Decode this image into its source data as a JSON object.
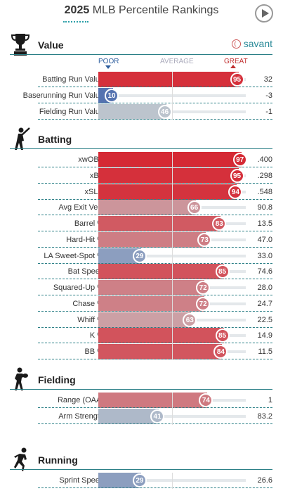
{
  "header": {
    "title_year": "2025",
    "title_rest": "MLB Percentile Rankings"
  },
  "brand": {
    "savant_label": "savant"
  },
  "scale": {
    "poor": "POOR",
    "average": "AVERAGE",
    "great": "GREAT"
  },
  "sections": [
    {
      "key": "value",
      "label": "Value",
      "icon": "trophy-icon",
      "rows": [
        {
          "label": "Batting Run Value",
          "pct": 95,
          "value": "32"
        },
        {
          "label": "Baserunning Run Value",
          "pct": 10,
          "value": "-3"
        },
        {
          "label": "Fielding Run Value",
          "pct": 46,
          "value": "-1"
        }
      ]
    },
    {
      "key": "batting",
      "label": "Batting",
      "icon": "batter-icon",
      "rows": [
        {
          "label": "xwOBA",
          "pct": 97,
          "value": ".400"
        },
        {
          "label": "xBA",
          "pct": 95,
          "value": ".298"
        },
        {
          "label": "xSLG",
          "pct": 94,
          "value": ".548"
        },
        {
          "label": "Avg Exit Velo",
          "pct": 66,
          "value": "90.8"
        },
        {
          "label": "Barrel %",
          "pct": 83,
          "value": "13.5"
        },
        {
          "label": "Hard-Hit %",
          "pct": 73,
          "value": "47.0"
        },
        {
          "label": "LA Sweet-Spot %",
          "pct": 29,
          "value": "33.0"
        },
        {
          "label": "Bat Speed",
          "pct": 85,
          "value": "74.6"
        },
        {
          "label": "Squared-Up %",
          "pct": 72,
          "value": "28.0"
        },
        {
          "label": "Chase %",
          "pct": 72,
          "value": "24.7"
        },
        {
          "label": "Whiff %",
          "pct": 63,
          "value": "22.5"
        },
        {
          "label": "K %",
          "pct": 85,
          "value": "14.9"
        },
        {
          "label": "BB %",
          "pct": 84,
          "value": "11.5"
        }
      ]
    },
    {
      "key": "fielding",
      "label": "Fielding",
      "icon": "fielder-icon",
      "rows": [
        {
          "label": "Range (OAA)",
          "pct": 74,
          "value": "1"
        },
        {
          "label": "Arm Strength",
          "pct": 41,
          "value": "83.2"
        }
      ]
    },
    {
      "key": "running",
      "label": "Running",
      "icon": "runner-icon",
      "rows": [
        {
          "label": "Sprint Speed",
          "pct": 29,
          "value": "26.6"
        }
      ]
    }
  ]
}
